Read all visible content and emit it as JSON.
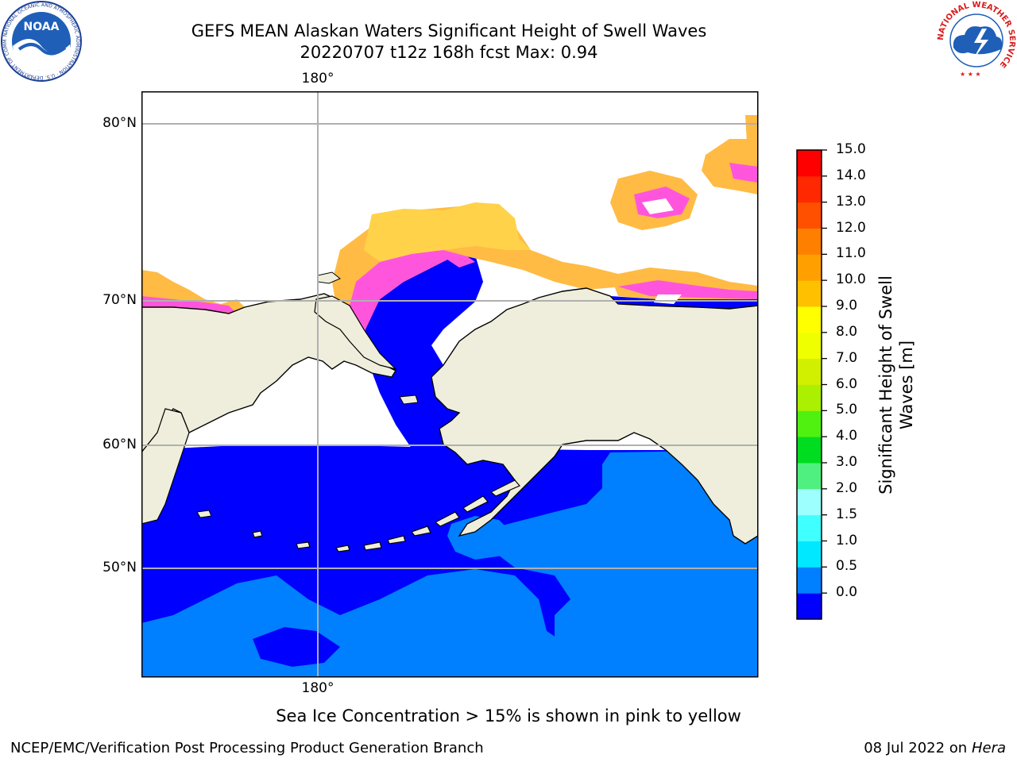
{
  "header": {
    "title_line1": "GEFS MEAN Alaskan Waters Significant Height of Swell Waves",
    "title_line2": "20220707 t12z 168h fcst   Max: 0.94"
  },
  "logos": {
    "noaa_text": "NOAA",
    "noaa_ring_text": "NATIONAL OCEANIC AND ATMOSPHERIC ADMINISTRATION · U.S. DEPARTMENT OF COMMERCE",
    "nws_ring_text": "NATIONAL WEATHER SERVICE"
  },
  "map": {
    "lon_label_top": "180°",
    "lon_label_bottom": "180°",
    "lat_labels": [
      "80°N",
      "70°N",
      "60°N",
      "50°N"
    ],
    "colors": {
      "land": "#efeedc",
      "sea_band_0_05": "#0000ff",
      "sea_band_05_10": "#0080ff",
      "gridline": "#b0b0b0",
      "ice_pink": "#ff55dd",
      "ice_orange": "#ffbb44",
      "ice_yellow": "#ffd24a"
    }
  },
  "colorbar": {
    "label_line1": "Significant Height of Swell",
    "label_line2": "Waves [m]",
    "ticks": [
      "15.0",
      "14.0",
      "13.0",
      "12.0",
      "11.0",
      "10.0",
      "9.0",
      "8.0",
      "7.0",
      "6.0",
      "5.0",
      "4.0",
      "3.0",
      "2.0",
      "1.5",
      "1.0",
      "0.5",
      "0.0"
    ],
    "colors_bottom_to_top": [
      "#0000ff",
      "#0080ff",
      "#00e8ff",
      "#40ffff",
      "#9effff",
      "#50f080",
      "#00dd20",
      "#50f010",
      "#aaf000",
      "#d0f000",
      "#f0ff00",
      "#ffff00",
      "#ffc000",
      "#ffa000",
      "#ff8000",
      "#ff5000",
      "#ff2800",
      "#ff0000"
    ]
  },
  "note": "Sea Ice Concentration > 15% is shown in pink to yellow",
  "footer": {
    "left": "NCEP/EMC/Verification Post Processing Product Generation Branch",
    "right_date": "08 Jul 2022 on ",
    "right_host": "Hera"
  }
}
